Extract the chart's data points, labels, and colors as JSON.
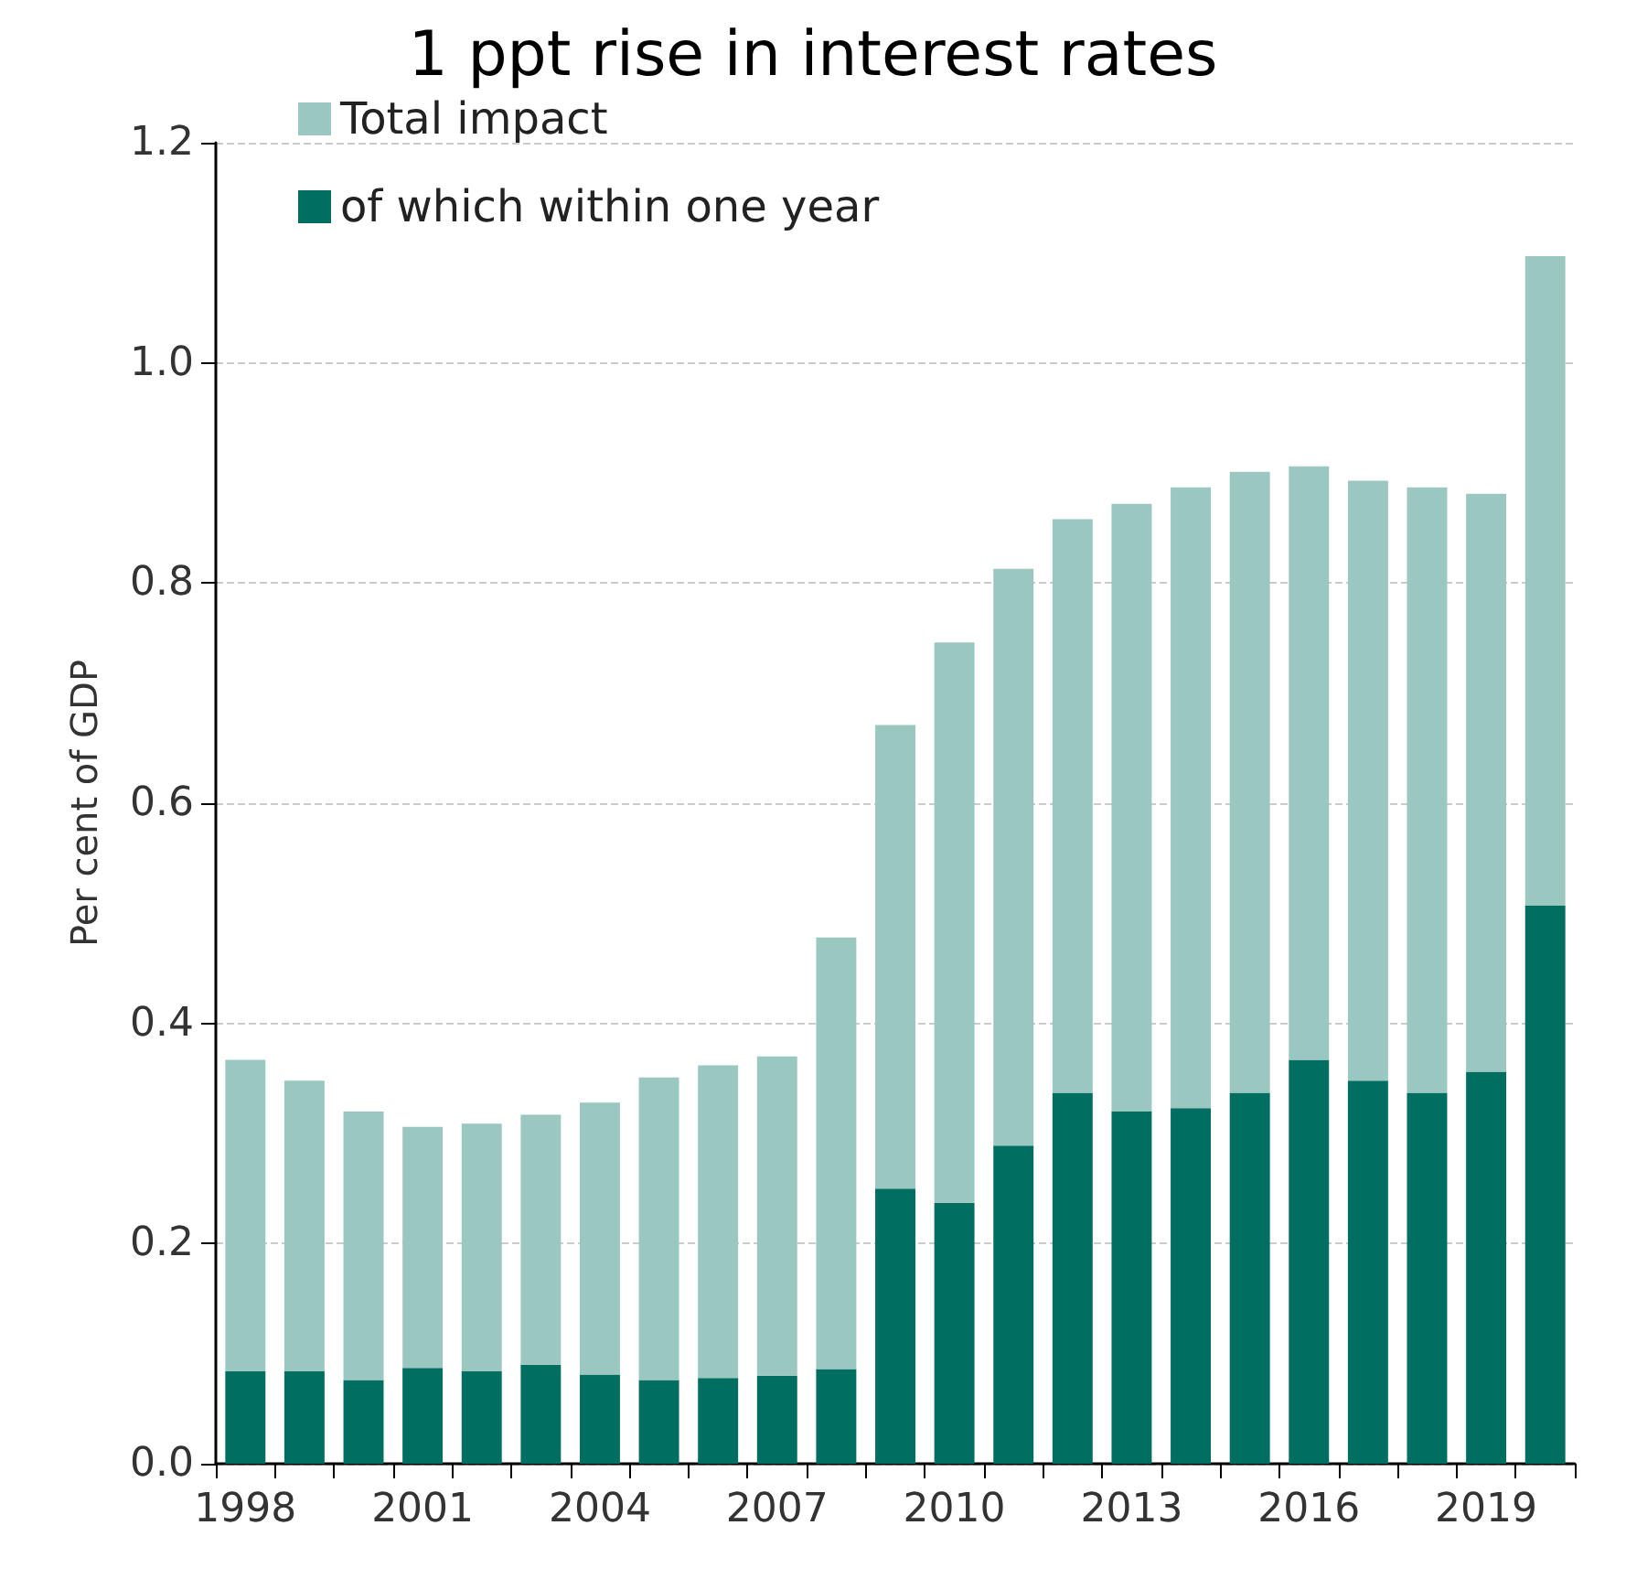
{
  "chart_data": {
    "type": "bar",
    "title": "1 ppt rise in interest rates",
    "ylabel": "Per cent of GDP",
    "categories": [
      "1998",
      null,
      null,
      "2001",
      null,
      null,
      "2004",
      null,
      null,
      "2007",
      null,
      null,
      "2010",
      null,
      null,
      "2013",
      null,
      null,
      "2016",
      null,
      null,
      "2019",
      null
    ],
    "stacked": true,
    "series": [
      {
        "name": "of which within one year",
        "color": "#006e60",
        "values": [
          0.084,
          0.084,
          0.076,
          0.087,
          0.084,
          0.09,
          0.081,
          0.076,
          0.078,
          0.08,
          0.086,
          0.25,
          0.237,
          0.289,
          0.337,
          0.32,
          0.323,
          0.337,
          0.367,
          0.348,
          0.337,
          0.356,
          0.507
        ]
      },
      {
        "name": "Total impact",
        "color": "#9bc7c1",
        "values": [
          0.283,
          0.264,
          0.244,
          0.219,
          0.225,
          0.227,
          0.247,
          0.275,
          0.284,
          0.29,
          0.392,
          0.421,
          0.509,
          0.524,
          0.521,
          0.552,
          0.564,
          0.564,
          0.539,
          0.545,
          0.55,
          0.525,
          0.59
        ]
      }
    ],
    "ylim": [
      0,
      1.2
    ],
    "yticks": [
      {
        "value": 0,
        "label": "0.0"
      },
      0.2,
      0.4,
      0.6,
      0.8,
      {
        "value": 1,
        "label": "1.0"
      },
      1.2
    ],
    "grid": "y",
    "legend": "top left"
  }
}
